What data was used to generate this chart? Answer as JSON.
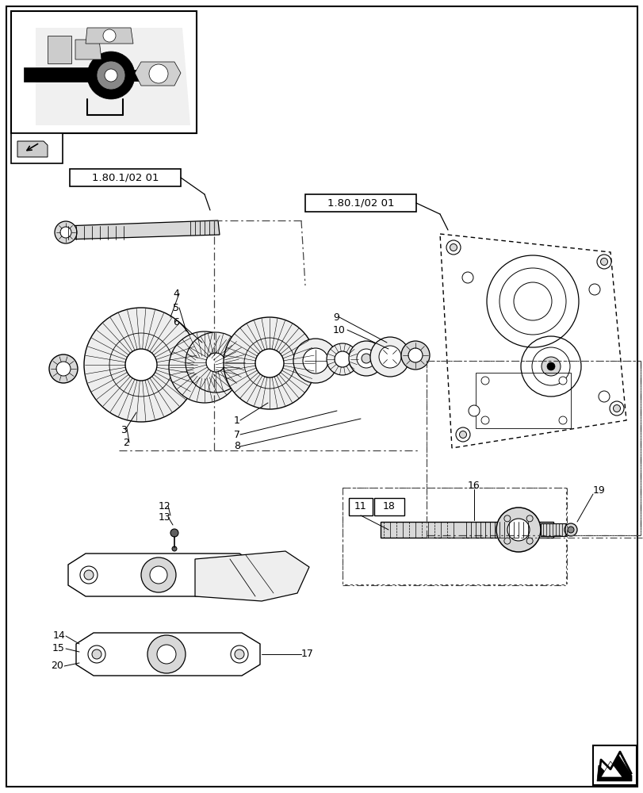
{
  "bg_color": "#ffffff",
  "line_color": "#000000",
  "fig_width": 8.12,
  "fig_height": 10.0,
  "dpi": 100,
  "ref_label": "1.80.1/02 01",
  "gray_fill": "#d8d8d8",
  "light_gray": "#eeeeee",
  "dash_color": "#555555",
  "dot_dash": [
    8,
    4,
    2,
    4
  ]
}
